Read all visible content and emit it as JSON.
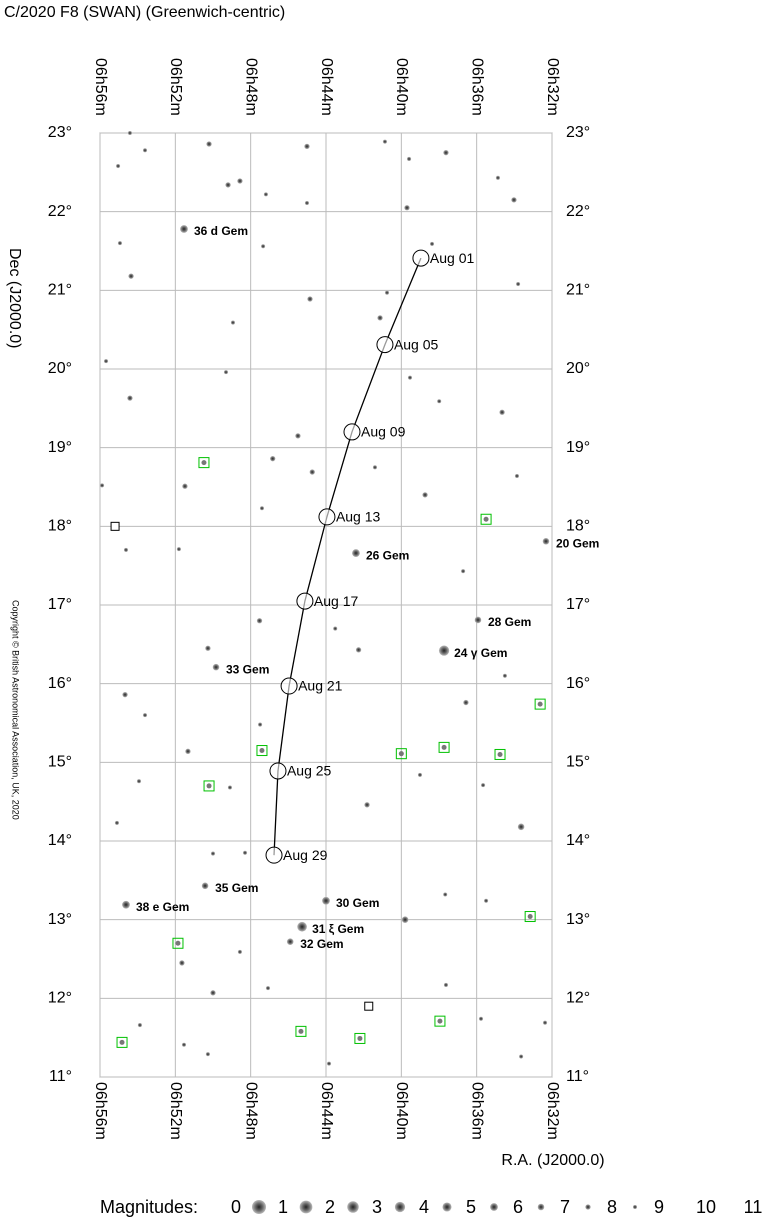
{
  "chart_data": {
    "type": "star-chart",
    "title": "C/2020 F8 (SWAN)  (Greenwich-centric)",
    "x_label": "R.A. (J2000.0)",
    "y_label": "Dec (J2000.0)",
    "copyright": "Copyright © British Astronomical Association, UK, 2020",
    "xlim": [
      416,
      392
    ],
    "ylim": [
      11,
      23
    ],
    "xticks": [
      {
        "value": 416,
        "label": "06h56m"
      },
      {
        "value": 412,
        "label": "06h52m"
      },
      {
        "value": 408,
        "label": "06h48m"
      },
      {
        "value": 404,
        "label": "06h44m"
      },
      {
        "value": 400,
        "label": "06h40m"
      },
      {
        "value": 396,
        "label": "06h36m"
      },
      {
        "value": 392,
        "label": "06h32m"
      }
    ],
    "yticks": [
      {
        "value": 23,
        "label": "23°"
      },
      {
        "value": 22,
        "label": "22°"
      },
      {
        "value": 21,
        "label": "21°"
      },
      {
        "value": 20,
        "label": "20°"
      },
      {
        "value": 19,
        "label": "19°"
      },
      {
        "value": 18,
        "label": "18°"
      },
      {
        "value": 17,
        "label": "17°"
      },
      {
        "value": 16,
        "label": "16°"
      },
      {
        "value": 15,
        "label": "15°"
      },
      {
        "value": 14,
        "label": "14°"
      },
      {
        "value": 13,
        "label": "13°"
      },
      {
        "value": 12,
        "label": "12°"
      },
      {
        "value": 11,
        "label": "11°"
      }
    ],
    "grid": true,
    "comet": {
      "color": "#000000",
      "labels": [
        "Aug 01",
        "Aug 05",
        "Aug 09",
        "Aug 13",
        "Aug 17",
        "Aug 21",
        "Aug 25",
        "Aug 29"
      ],
      "x": [
        398.96,
        400.87,
        402.62,
        403.95,
        405.12,
        405.96,
        406.55,
        406.76
      ],
      "y": [
        21.41,
        20.31,
        19.2,
        18.12,
        17.05,
        15.97,
        14.89,
        13.82
      ]
    },
    "labeled_stars": {
      "names": [
        "36 d Gem",
        "26 Gem",
        "20 Gem",
        "28 Gem",
        "24 γ Gem",
        "33 Gem",
        "35 Gem",
        "38 e Gem",
        "30 Gem",
        "31 ξ Gem",
        "32 Gem"
      ],
      "x": [
        411.54,
        402.41,
        392.32,
        395.93,
        397.73,
        409.84,
        410.42,
        414.62,
        404.0,
        405.27,
        405.9
      ],
      "y": [
        21.78,
        17.66,
        17.81,
        16.81,
        16.42,
        16.21,
        13.43,
        13.19,
        13.24,
        12.91,
        12.72
      ],
      "magnitudes": [
        5,
        5,
        6,
        6,
        3,
        6,
        6,
        5,
        5,
        3.5,
        6
      ]
    },
    "field_stars": {
      "x": [
        414.41,
        413.61,
        415.04,
        410.21,
        409.2,
        408.57,
        405.01,
        407.19,
        405.01,
        400.87,
        397.63,
        399.59,
        394.87,
        394.02,
        414.35,
        414.94,
        407.34,
        399.7,
        398.37,
        393.8,
        400.76,
        404.85,
        401.13,
        408.94,
        415.68,
        414.41,
        409.31,
        399.54,
        397.99,
        394.65,
        405.49,
        406.83,
        404.73,
        407.4,
        401.4,
        393.86,
        398.74,
        411.49,
        414.62,
        411.81,
        396.72,
        407.53,
        403.51,
        402.27,
        410.27,
        394.5,
        414.67,
        413.61,
        407.5,
        396.57,
        411.33,
        401.82,
        399.01,
        395.66,
        413.93,
        409.1,
        415.1,
        408.3,
        410.0,
        399.8,
        397.67,
        395.5,
        411.65,
        408.57,
        410.0,
        397.63,
        413.88,
        411.54,
        410.27,
        407.08,
        403.84,
        395.77,
        392.37,
        393.64,
        415.89,
        393.64
      ],
      "y": [
        23.0,
        22.78,
        22.58,
        22.86,
        22.34,
        22.39,
        22.83,
        22.22,
        22.11,
        22.89,
        22.75,
        22.67,
        22.43,
        22.15,
        21.18,
        21.6,
        21.56,
        22.05,
        21.59,
        21.08,
        20.97,
        20.89,
        20.65,
        20.59,
        20.1,
        19.63,
        19.96,
        19.89,
        19.59,
        19.45,
        19.15,
        18.86,
        18.69,
        18.23,
        18.75,
        18.64,
        18.4,
        18.51,
        17.7,
        17.71,
        17.43,
        16.8,
        16.7,
        16.43,
        16.45,
        16.1,
        15.86,
        15.6,
        15.48,
        15.76,
        15.14,
        14.46,
        14.84,
        14.71,
        14.76,
        14.68,
        14.23,
        13.85,
        13.84,
        13.0,
        13.32,
        13.24,
        12.45,
        12.59,
        12.07,
        12.17,
        11.66,
        11.41,
        11.29,
        12.13,
        11.17,
        11.74,
        11.69,
        11.26,
        18.52,
        14.18
      ],
      "magnitudes": [
        8,
        8,
        8,
        7,
        7,
        7,
        7,
        8,
        8,
        8,
        7,
        8,
        8,
        7,
        7,
        8,
        8,
        7,
        8,
        8,
        8,
        7,
        7,
        8,
        8,
        7,
        8,
        8,
        8,
        7,
        7,
        7,
        7,
        8,
        8,
        8,
        7,
        7,
        8,
        8,
        8,
        7,
        8,
        7,
        7,
        8,
        7,
        8,
        8,
        7,
        7,
        7,
        8,
        8,
        8,
        8,
        8,
        8,
        8,
        6,
        8,
        8,
        7,
        8,
        7,
        8,
        8,
        8,
        8,
        8,
        8,
        8,
        8,
        8,
        8,
        6
      ]
    },
    "deep_sky": {
      "color": "#00c000",
      "x": [
        410.48,
        395.5,
        392.63,
        407.4,
        400.0,
        397.73,
        394.76,
        410.21,
        393.16,
        411.86,
        414.83,
        405.33,
        402.2,
        397.95
      ],
      "y": [
        18.81,
        18.09,
        15.74,
        15.15,
        15.11,
        15.19,
        15.1,
        14.7,
        13.04,
        12.7,
        11.44,
        11.58,
        11.49,
        11.71
      ]
    },
    "markers": {
      "x": [
        415.2,
        401.73
      ],
      "y": [
        18.0,
        11.9
      ]
    },
    "legend": {
      "label": "Magnitudes:",
      "magnitudes": [
        0,
        1,
        2,
        3,
        4,
        5,
        6,
        7,
        8,
        9,
        10,
        11
      ]
    }
  }
}
